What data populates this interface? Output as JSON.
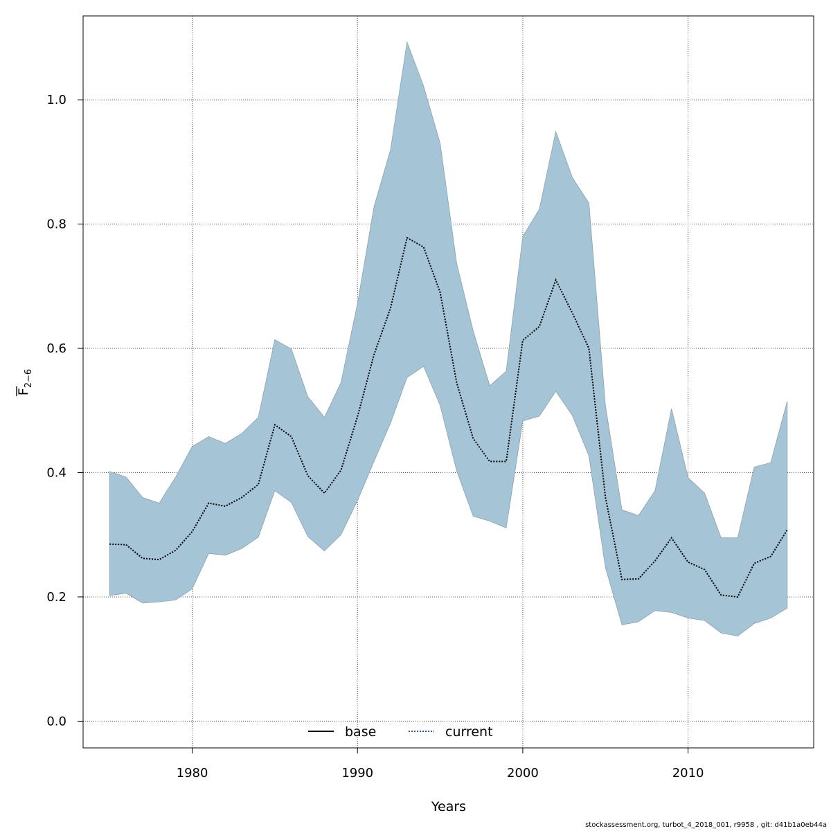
{
  "chart_data": {
    "type": "area",
    "xlabel": "Years",
    "ylabel": {
      "base": "F",
      "subscript": "2−6"
    },
    "xlim": [
      1973.4,
      2017.6
    ],
    "ylim": [
      -0.043,
      1.135
    ],
    "xticks": [
      1980,
      1990,
      2000,
      2010
    ],
    "yticks": [
      "0.0",
      "0.2",
      "0.4",
      "0.6",
      "0.8",
      "1.0"
    ],
    "grid": true,
    "legend": {
      "placement": "bottom-center",
      "entries": [
        "base",
        "current"
      ]
    },
    "colors": {
      "band_fill": "#a5c4d6",
      "band_edge": "#8aa2b0",
      "line": "#000000",
      "dotted": "#1a5fa0",
      "grid": "#555555"
    },
    "x": [
      1975,
      1976,
      1977,
      1978,
      1979,
      1980,
      1981,
      1982,
      1983,
      1984,
      1985,
      1986,
      1987,
      1988,
      1989,
      1990,
      1991,
      1992,
      1993,
      1994,
      1995,
      1996,
      1997,
      1998,
      1999,
      2000,
      2001,
      2002,
      2003,
      2004,
      2005,
      2006,
      2007,
      2008,
      2009,
      2010,
      2011,
      2012,
      2013,
      2014,
      2015,
      2016
    ],
    "series": [
      {
        "name": "current",
        "values": [
          0.285,
          0.284,
          0.262,
          0.26,
          0.275,
          0.305,
          0.351,
          0.346,
          0.36,
          0.381,
          0.477,
          0.458,
          0.395,
          0.367,
          0.404,
          0.49,
          0.59,
          0.665,
          0.778,
          0.763,
          0.69,
          0.545,
          0.455,
          0.418,
          0.418,
          0.613,
          0.635,
          0.71,
          0.657,
          0.6,
          0.36,
          0.228,
          0.229,
          0.258,
          0.295,
          0.256,
          0.244,
          0.203,
          0.2,
          0.254,
          0.265,
          0.308
        ]
      },
      {
        "name": "upper",
        "values": [
          0.402,
          0.393,
          0.36,
          0.351,
          0.393,
          0.442,
          0.458,
          0.447,
          0.463,
          0.489,
          0.614,
          0.599,
          0.522,
          0.489,
          0.545,
          0.672,
          0.828,
          0.92,
          1.093,
          1.022,
          0.93,
          0.737,
          0.628,
          0.54,
          0.563,
          0.78,
          0.824,
          0.949,
          0.875,
          0.834,
          0.508,
          0.34,
          0.331,
          0.371,
          0.503,
          0.392,
          0.367,
          0.295,
          0.295,
          0.409,
          0.416,
          0.515
        ]
      },
      {
        "name": "lower",
        "values": [
          0.202,
          0.206,
          0.19,
          0.192,
          0.195,
          0.213,
          0.27,
          0.267,
          0.278,
          0.296,
          0.371,
          0.352,
          0.297,
          0.274,
          0.3,
          0.355,
          0.418,
          0.48,
          0.553,
          0.571,
          0.508,
          0.403,
          0.33,
          0.322,
          0.311,
          0.483,
          0.491,
          0.531,
          0.492,
          0.427,
          0.247,
          0.155,
          0.16,
          0.178,
          0.175,
          0.166,
          0.162,
          0.142,
          0.137,
          0.157,
          0.166,
          0.182
        ]
      }
    ]
  },
  "footer": "stockassessment.org, turbot_4_2018_001, r9958 , git: d41b1a0eb44a"
}
